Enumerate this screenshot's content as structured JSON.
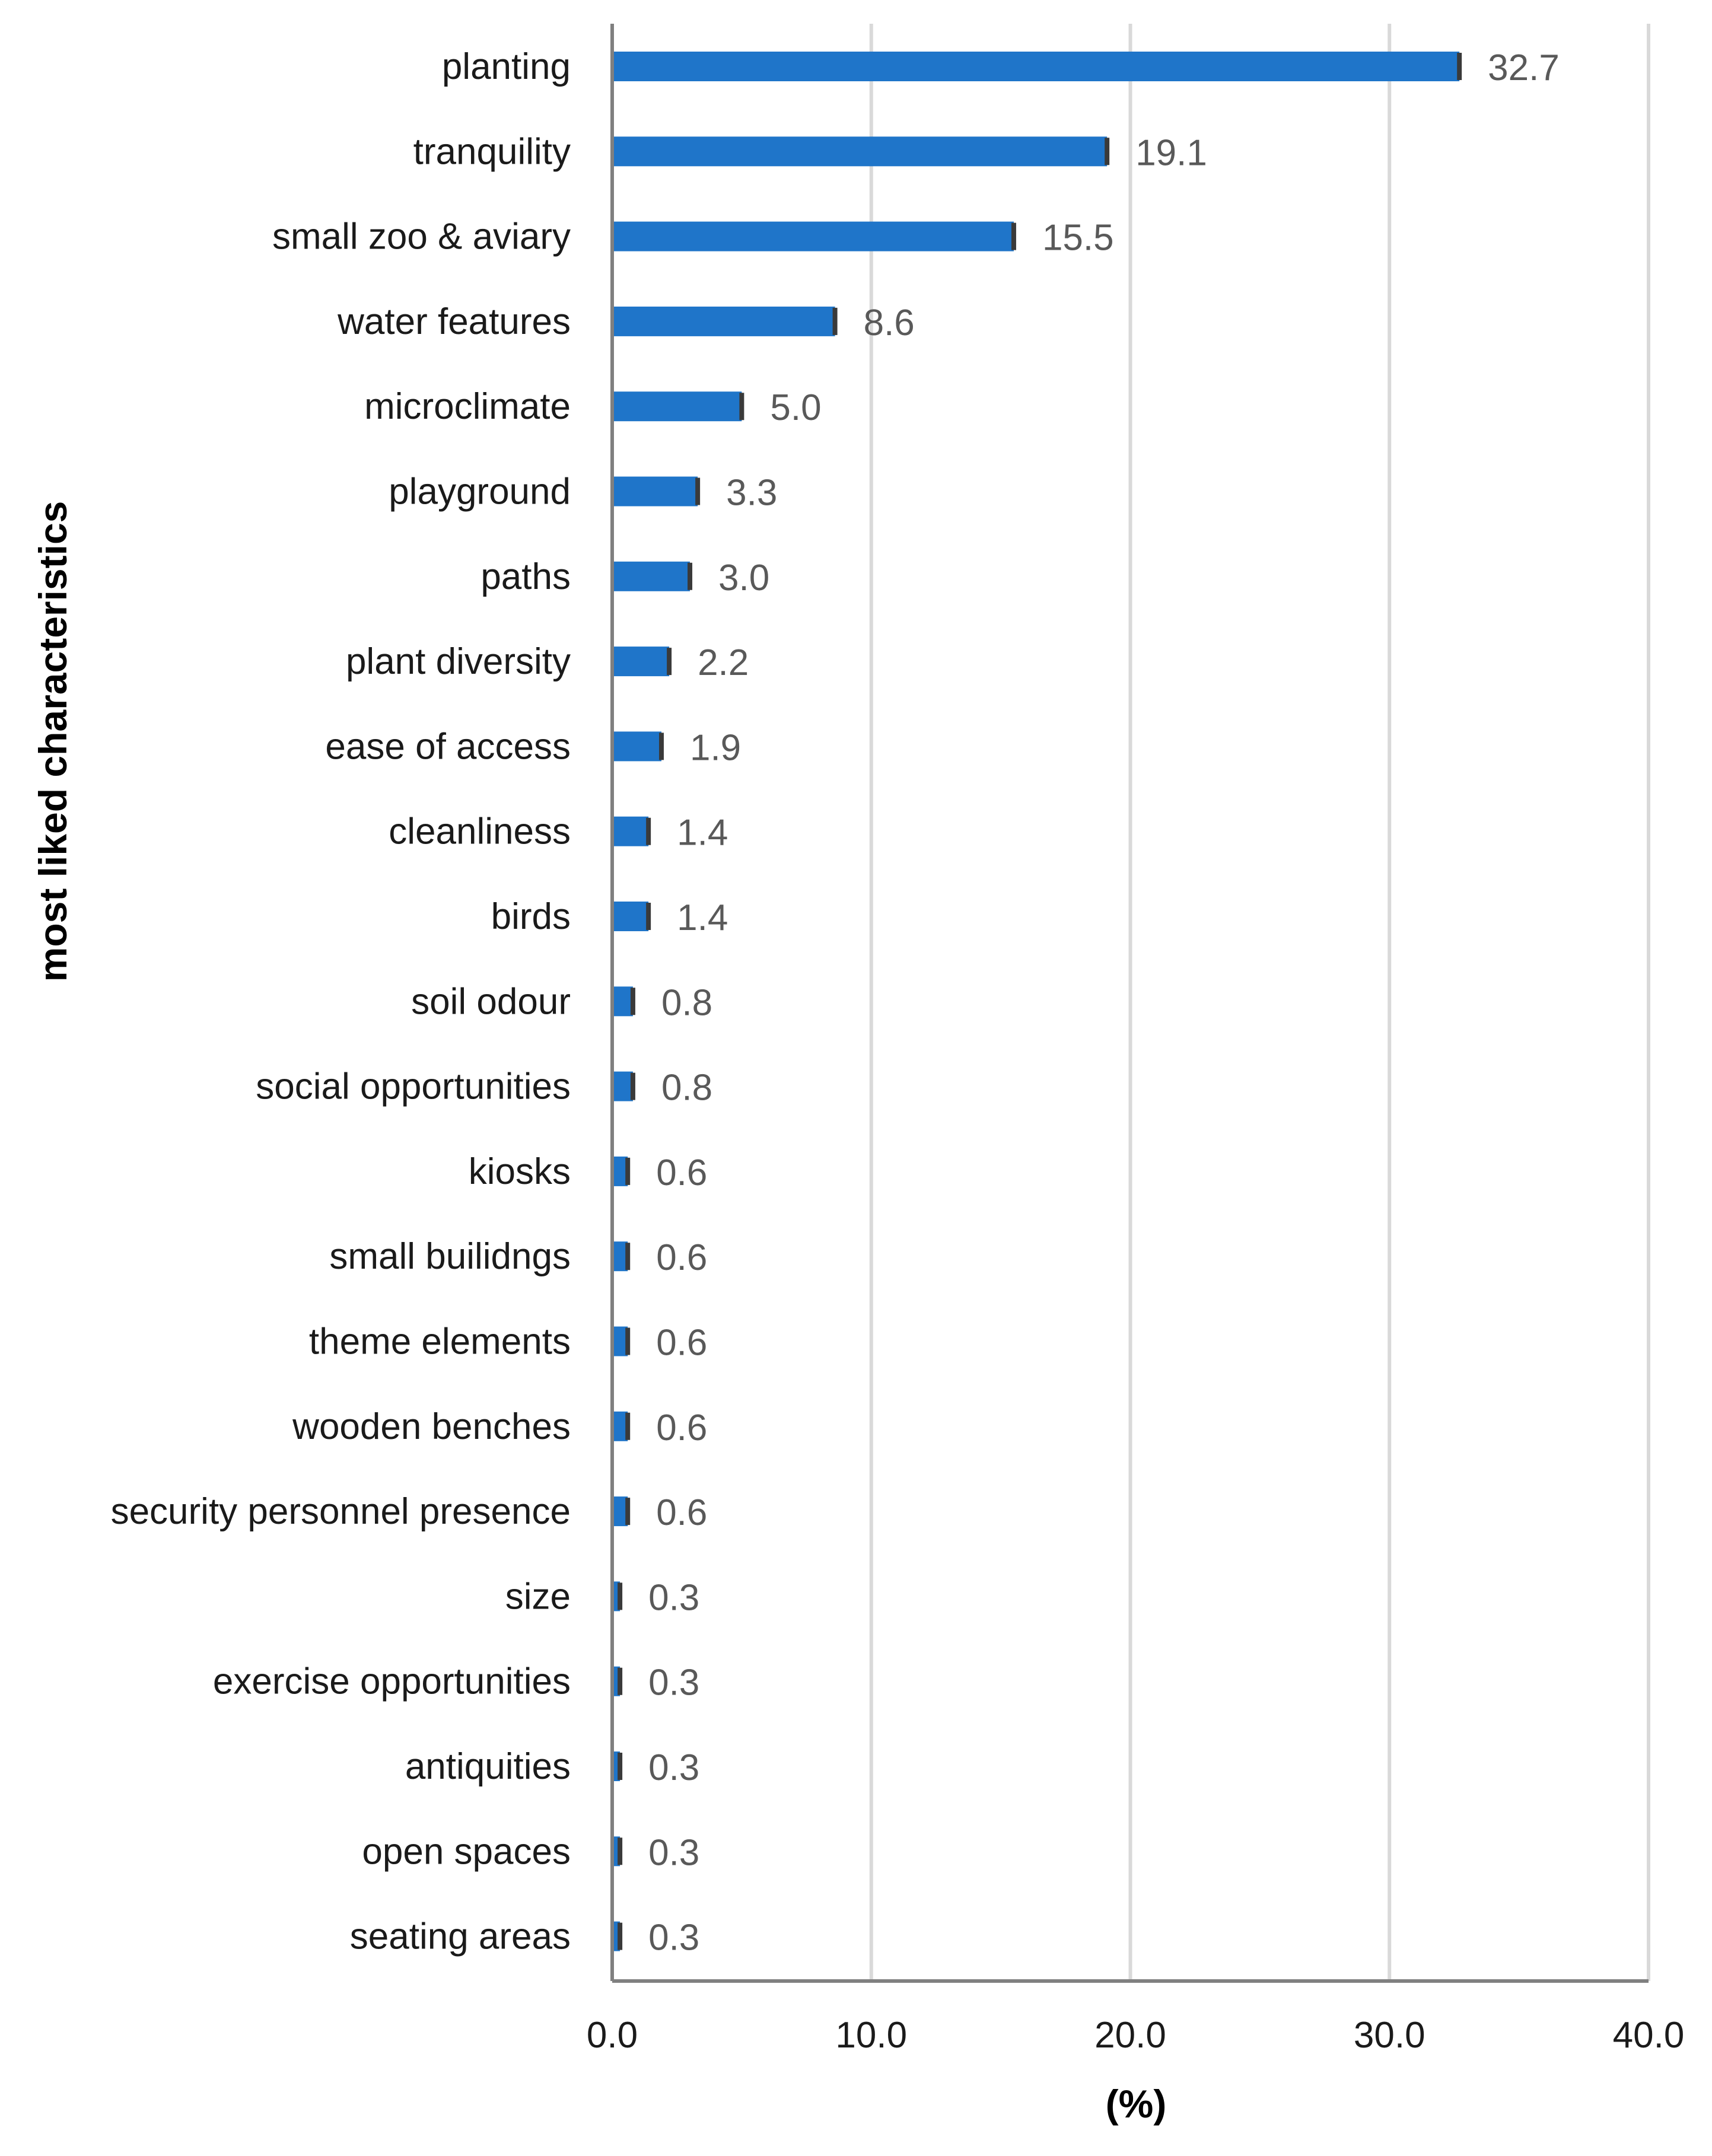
{
  "chart_data": {
    "type": "bar",
    "orientation": "horizontal",
    "categories": [
      "planting",
      "tranquility",
      "small zoo & aviary",
      "water features",
      "microclimate",
      "playground",
      "paths",
      "plant diversity",
      "ease of access",
      "cleanliness",
      "birds",
      "soil odour",
      "social opportunities",
      "kiosks",
      "small builidngs",
      "theme elements",
      "wooden benches",
      "security personnel presence",
      "size",
      "exercise opportunities",
      "antiquities",
      "open spaces",
      "seating areas"
    ],
    "values": [
      32.7,
      19.1,
      15.5,
      8.6,
      5.0,
      3.3,
      3.0,
      2.2,
      1.9,
      1.4,
      1.4,
      0.8,
      0.8,
      0.6,
      0.6,
      0.6,
      0.6,
      0.6,
      0.3,
      0.3,
      0.3,
      0.3,
      0.3
    ],
    "value_labels": [
      "32.7",
      "19.1",
      "15.5",
      "8.6",
      "5.0",
      "3.3",
      "3.0",
      "2.2",
      "1.9",
      "1.4",
      "1.4",
      "0.8",
      "0.8",
      "0.6",
      "0.6",
      "0.6",
      "0.6",
      "0.6",
      "0.3",
      "0.3",
      "0.3",
      "0.3",
      "0.3"
    ],
    "xlabel": "(%)",
    "ylabel": "most liked characteristics",
    "xlim": [
      0,
      40
    ],
    "xticks": [
      0,
      10,
      20,
      30,
      40
    ],
    "xtick_labels": [
      "0.0",
      "10.0",
      "20.0",
      "30.0",
      "40.0"
    ],
    "grid": "vertical",
    "bar_color": "#1f75c9",
    "error_bar_color": "#3a3a3a"
  }
}
